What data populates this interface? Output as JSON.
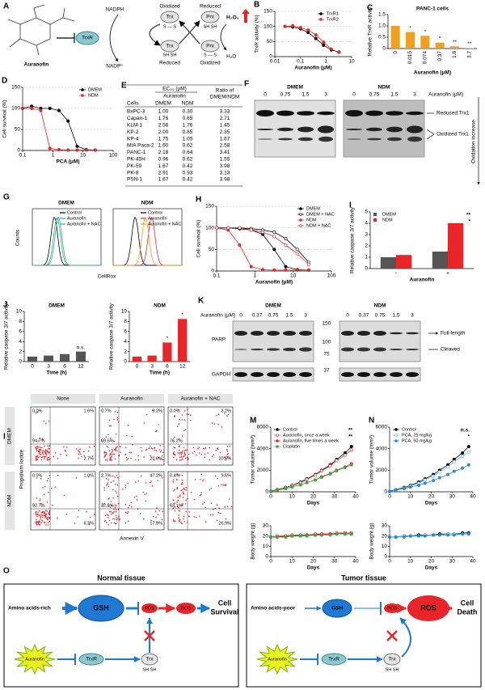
{
  "diagram_a": {
    "panel": "A",
    "compound": "Auranofin",
    "enzyme": "TrxR",
    "nadph": "NADPH",
    "nadp": "NADP⁺",
    "trx": "Trx",
    "prx": "Prx",
    "oxidized": "Oxidized",
    "reduced": "Reduced",
    "disulfide": "S — S",
    "thiol": "SH  SH",
    "h2o2": "H₂O₂",
    "h2o": "H₂O"
  },
  "table": {
    "panel": "E",
    "header_group": "EC₅₀ (μM)",
    "header_sub": "Auranofin",
    "ratio_header": [
      "Ratio of",
      "DMEM/NDM"
    ],
    "columns": [
      "Cells",
      "DMEM",
      "NDM"
    ],
    "rows": [
      [
        "BxPC-3",
        "1.00",
        "0.30",
        "3.33"
      ],
      [
        "Capan-1",
        "1.76",
        "0.65",
        "2.71"
      ],
      [
        "KLM-1",
        "2.56",
        "1.76",
        "1.45"
      ],
      [
        "KP-2",
        "2.00",
        "0.85",
        "2.35"
      ],
      [
        "KP-4",
        "1.75",
        "1.05",
        "1.67"
      ],
      [
        "MIA Paca-2",
        "1.60",
        "0.62",
        "2.58"
      ],
      [
        "PANC-1",
        "2.18",
        "0.64",
        "3.41"
      ],
      [
        "PK-45H",
        "0.96",
        "0.62",
        "1.55"
      ],
      [
        "PK-59",
        "1.67",
        "0.42",
        "3.98"
      ],
      [
        "PK-8",
        "2.91",
        "0.93",
        "3.13"
      ],
      [
        "PSN-1",
        "1.67",
        "0.42",
        "3.98"
      ]
    ]
  },
  "blot_f": {
    "panel": "F",
    "conditions": [
      "DMEM",
      "NDM"
    ],
    "lanes": [
      "0",
      "0.75",
      "1.5",
      "3"
    ],
    "treatment": "Auranofin (μM)",
    "reduced": "Reduced Trx1",
    "oxidized": "Oxidized Trx1",
    "trend": "Oxidation increase"
  },
  "flow_g": {
    "panel": "G",
    "conditions": [
      "DMEM",
      "NDM"
    ],
    "legends": [
      [
        "Control",
        "Auranofin",
        "Auranofin + NAC"
      ],
      [
        "Control",
        "Auranofin",
        "Auranofin + NAC"
      ]
    ],
    "colors": [
      [
        "#000000",
        "#29a8d8",
        "#3cb44b"
      ],
      [
        "#000000",
        "#e8262a",
        "#f0a020"
      ]
    ],
    "ylabel": "Counts",
    "xlabel": "CellRox"
  },
  "blot_k": {
    "panel": "K",
    "conditions": [
      "DMEM",
      "NDM"
    ],
    "treatment": "Auranofin (μM)",
    "lanes": [
      "0",
      "0.37",
      "0.75",
      "1.5",
      "3"
    ],
    "proteins": [
      "PARP",
      "GAPDH"
    ],
    "markers": [
      "150",
      "100",
      "75",
      "37"
    ],
    "bands": [
      "Full-length",
      "Cleaved"
    ]
  },
  "flow_l": {
    "panel": "L",
    "columns": [
      "None",
      "Auranofin",
      "Auranofin + NAC"
    ],
    "rows": [
      "DMEM",
      "NDM"
    ],
    "quadrants": [
      [
        [
          "0.0%",
          "1.6%",
          "94.7%",
          "2.7%"
        ],
        [
          "0.7%",
          "9.2%",
          "69.6%",
          "20.6%"
        ],
        [
          "0.0%",
          "3.2%",
          "76.2%",
          "20.5%"
        ]
      ],
      [
        [
          "0.0%",
          "1.0%",
          "92.7%",
          "6.3%"
        ],
        [
          "2.7%",
          "47.2%",
          "32.8%",
          "17.3%"
        ],
        [
          "0.4%",
          "9.6%",
          "63.1%",
          "26.9%"
        ]
      ]
    ],
    "ylabel": "Propidium Iodide",
    "xlabel": "Annexin V"
  },
  "diagram_o": {
    "panel": "O",
    "normal": {
      "title": "Normal tissue",
      "amino": "Amino acids-rich",
      "gsh": "GSH",
      "ros": "ROS",
      "outcome": [
        "Cell",
        "Survival"
      ],
      "drug": "Auranofin",
      "trxr": "TrxR",
      "trx": "Trx",
      "thiol": "SH SH"
    },
    "tumor": {
      "title": "Tumor tissue",
      "amino": "Amino acids-poor",
      "gsh": "GSH",
      "ros": "ROS",
      "outcome": [
        "Cell",
        "Death"
      ],
      "drug": "Auranofin",
      "trxr": "TrxR",
      "trx": "Trx",
      "thiol": "SH SH"
    }
  },
  "chart_data": [
    {
      "panel": "B",
      "type": "line",
      "xlog": true,
      "x": [
        0.025,
        0.05,
        0.1,
        0.2,
        0.4,
        0.8,
        1.6,
        3.2
      ],
      "xlim": [
        0.01,
        10
      ],
      "xticks": [
        0.01,
        0.1,
        1,
        10
      ],
      "ylim": [
        0,
        150
      ],
      "yticks": [
        0,
        50,
        100,
        150
      ],
      "grid": true,
      "xlabel": "Auranofin (μM)",
      "ylabel": "TrxR activity (%)",
      "legend": "upper right",
      "series": [
        {
          "name": "TrxR1",
          "color": "#000000",
          "marker": "filled",
          "values": [
            100,
            98,
            92,
            80,
            60,
            38,
            22,
            15
          ]
        },
        {
          "name": "TrxR2",
          "color": "#e8262a",
          "marker": "filled",
          "values": [
            100,
            102,
            96,
            88,
            72,
            48,
            25,
            14
          ]
        }
      ]
    },
    {
      "panel": "C",
      "type": "bar",
      "title": "PANC-1 cells",
      "categories": [
        "0",
        "0.015",
        "0.074",
        "0.37",
        "1.8",
        "3.7"
      ],
      "values": [
        1.0,
        0.73,
        0.56,
        0.26,
        0.1,
        0.02
      ],
      "color": "#f0a020",
      "ylim": [
        0,
        1.5
      ],
      "yticks": [
        0,
        0.5,
        {
          "value": 1,
          "label": "1.0"
        },
        1.5
      ],
      "xlabel": "Auranofin (μM)",
      "ylabel": "Relative TrxR activity",
      "significance": [
        null,
        "*",
        "*",
        "*",
        "**",
        "**"
      ]
    },
    {
      "panel": "D",
      "type": "line",
      "xlog": true,
      "x": [
        0.1,
        0.2,
        0.4,
        0.8,
        1.6,
        3.2,
        6.4,
        12.8,
        25.6
      ],
      "xlim": [
        0.1,
        100
      ],
      "xticks": [
        0.1,
        1,
        10,
        100
      ],
      "ylim": [
        0,
        150
      ],
      "yticks": [
        0,
        50,
        100,
        150
      ],
      "grid": true,
      "xlabel": "PCA (μM)",
      "ylabel": "Cell survival (%)",
      "legend": "upper right",
      "series": [
        {
          "name": "DMEM",
          "color": "#000000",
          "marker": "filled",
          "values": [
            100,
            105,
            100,
            100,
            95,
            70,
            10,
            2,
            1
          ]
        },
        {
          "name": "NDM",
          "color": "#e8262a",
          "marker": "filled",
          "values": [
            100,
            100,
            95,
            5,
            2,
            1,
            1,
            1,
            1
          ]
        }
      ]
    },
    {
      "panel": "H",
      "type": "line",
      "xlog": true,
      "x": [
        0.1,
        0.2,
        0.4,
        0.8,
        1.6,
        3.2,
        6.4,
        12.8,
        25.6
      ],
      "xlim": [
        0.1,
        100
      ],
      "xticks": [
        0.1,
        1,
        10,
        100
      ],
      "ylim": [
        0,
        150
      ],
      "yticks": [
        0,
        50,
        100,
        150
      ],
      "grid": true,
      "xlabel": "Auranofin (μM)",
      "ylabel": "Cell survival (%)",
      "legend": "upper right",
      "series": [
        {
          "name": "DMEM",
          "color": "#000000",
          "marker": "filled",
          "values": [
            100,
            100,
            98,
            95,
            85,
            50,
            10,
            3,
            2
          ]
        },
        {
          "name": "DMEM + NAC",
          "color": "#000000",
          "marker": "open",
          "values": [
            100,
            100,
            100,
            98,
            95,
            90,
            75,
            50,
            20
          ]
        },
        {
          "name": "NDM",
          "color": "#e8262a",
          "marker": "filled",
          "values": [
            100,
            95,
            60,
            10,
            3,
            2,
            2,
            2,
            2
          ]
        },
        {
          "name": "NDM + NAC",
          "color": "#e8262a",
          "marker": "open",
          "values": [
            100,
            100,
            100,
            95,
            90,
            80,
            60,
            40,
            15
          ]
        }
      ]
    },
    {
      "panel": "I",
      "type": "bar",
      "categories": [
        "-",
        "+"
      ],
      "ylim": [
        0,
        5
      ],
      "yticks": [
        0,
        1,
        2,
        3,
        4,
        5
      ],
      "xlabel": "Auranofin",
      "ylabel": "Relative caspase 3/7 activity",
      "legend": "upper left",
      "annotations": [
        "**",
        "*"
      ],
      "series": [
        {
          "name": "DMEM",
          "color": "#555555",
          "values": [
            1.0,
            1.5
          ]
        },
        {
          "name": "NDM",
          "color": "#e8262a",
          "values": [
            1.2,
            4.0
          ]
        }
      ]
    },
    {
      "panel": "J",
      "type": "bar",
      "title": "DMEM",
      "categories": [
        "0",
        "3",
        "6",
        "12"
      ],
      "values": [
        1.0,
        1.2,
        1.5,
        2.0
      ],
      "color": "#555555",
      "ylim": [
        0,
        10
      ],
      "yticks": [
        0,
        2,
        4,
        6,
        8,
        10
      ],
      "xlabel": "Time (h)",
      "ylabel": "Relative caspase 3/7 activity",
      "significance": [
        null,
        null,
        null,
        "n.s."
      ]
    },
    {
      "type": "bar",
      "title": "NDM",
      "categories": [
        "0",
        "3",
        "6",
        "12"
      ],
      "values": [
        1.0,
        1.2,
        3.8,
        8.5
      ],
      "color": "#e8262a",
      "ylim": [
        0,
        10
      ],
      "yticks": [
        0,
        2,
        4,
        6,
        8,
        10
      ],
      "xlabel": "Time (h)",
      "ylabel": "Relative caspase 3/7 activity",
      "significance": [
        null,
        null,
        "*",
        "*"
      ]
    },
    {
      "panel": "M",
      "type": "line",
      "x": [
        0,
        3,
        7,
        10,
        14,
        17,
        21,
        24,
        28,
        31,
        35,
        38
      ],
      "xlim": [
        0,
        40
      ],
      "xticks": [
        0,
        10,
        20,
        30,
        40
      ],
      "ylim": [
        0,
        6000
      ],
      "yticks": [
        0,
        2000,
        4000,
        6000
      ],
      "xlabel": "Days",
      "ylabel": "Tumor volume (mm³)",
      "legend": "upper left",
      "annotations": [
        "**",
        "**"
      ],
      "series": [
        {
          "name": "Control",
          "color": "#000000",
          "marker": "filled",
          "values": [
            50,
            200,
            400,
            600,
            900,
            1200,
            1600,
            2000,
            2500,
            3000,
            3600,
            4200
          ]
        },
        {
          "name": "Auranofin, once a week",
          "color": "#e8262a",
          "marker": "open",
          "values": [
            50,
            200,
            380,
            580,
            850,
            1150,
            1550,
            1950,
            2400,
            2900,
            3400,
            3900
          ]
        },
        {
          "name": "Auranofin, five times a week",
          "color": "#e8262a",
          "marker": "filled",
          "values": [
            50,
            150,
            300,
            450,
            650,
            850,
            1100,
            1400,
            1700,
            2000,
            2300,
            2600
          ]
        },
        {
          "name": "Cisplatin",
          "color": "#3aa845",
          "marker": "filled",
          "values": [
            50,
            150,
            300,
            450,
            650,
            850,
            1100,
            1350,
            1650,
            1950,
            2250,
            2500
          ]
        }
      ]
    },
    {
      "type": "line",
      "x": [
        0,
        3,
        7,
        10,
        14,
        17,
        21,
        24,
        28,
        31,
        35,
        38
      ],
      "xlim": [
        0,
        40
      ],
      "xticks": [
        0,
        10,
        20,
        30,
        40
      ],
      "ylim": [
        0,
        30
      ],
      "yticks": [
        0,
        10,
        20,
        30
      ],
      "xlabel": "Days",
      "ylabel": "Body weight (g)",
      "series": [
        {
          "color": "#000000",
          "marker": "filled",
          "values": [
            19,
            19,
            20,
            20,
            21,
            21,
            21,
            22,
            22,
            22,
            23,
            23
          ]
        },
        {
          "color": "#e8262a",
          "marker": "open",
          "values": [
            19,
            20,
            20,
            21,
            21,
            21,
            22,
            22,
            22,
            23,
            23,
            23
          ]
        },
        {
          "color": "#e8262a",
          "marker": "filled",
          "values": [
            19,
            19,
            19,
            20,
            20,
            21,
            21,
            21,
            22,
            22,
            22,
            22
          ]
        },
        {
          "color": "#3aa845",
          "marker": "filled",
          "values": [
            19,
            19,
            19,
            20,
            20,
            20,
            21,
            21,
            21,
            22,
            22,
            22
          ]
        }
      ]
    },
    {
      "panel": "N",
      "type": "line",
      "x": [
        0,
        3,
        7,
        10,
        14,
        17,
        21,
        24,
        28,
        31,
        35,
        38
      ],
      "xlim": [
        0,
        40
      ],
      "xticks": [
        0,
        10,
        20,
        30,
        40
      ],
      "ylim": [
        0,
        6000
      ],
      "yticks": [
        0,
        2000,
        4000,
        6000
      ],
      "xlabel": "Days",
      "ylabel": "Tumor volume (mm³)",
      "legend": "upper left",
      "annotations": [
        "n.s.",
        "*"
      ],
      "series": [
        {
          "name": "Control",
          "color": "#000000",
          "marker": "filled",
          "values": [
            50,
            200,
            400,
            600,
            900,
            1200,
            1600,
            2000,
            2500,
            3000,
            3600,
            4200
          ]
        },
        {
          "name": "PCA, 25 mg/kg",
          "color": "#5aaee0",
          "marker": "open",
          "values": [
            50,
            180,
            350,
            550,
            800,
            1100,
            1450,
            1850,
            2300,
            2800,
            3300,
            3700
          ]
        },
        {
          "name": "PCA, 50 mg/kg",
          "color": "#2a8ad0",
          "marker": "filled",
          "values": [
            50,
            150,
            300,
            450,
            600,
            800,
            1050,
            1300,
            1600,
            1900,
            2200,
            2500
          ]
        }
      ]
    },
    {
      "type": "line",
      "x": [
        0,
        3,
        7,
        10,
        14,
        17,
        21,
        24,
        28,
        31,
        35,
        38
      ],
      "xlim": [
        0,
        40
      ],
      "xticks": [
        0,
        10,
        20,
        30,
        40
      ],
      "ylim": [
        0,
        30
      ],
      "yticks": [
        0,
        10,
        20,
        30
      ],
      "xlabel": "Days",
      "ylabel": "Body weight (g)",
      "series": [
        {
          "color": "#000000",
          "marker": "filled",
          "values": [
            19,
            19,
            20,
            20,
            21,
            21,
            21,
            22,
            22,
            22,
            23,
            23
          ]
        },
        {
          "color": "#5aaee0",
          "marker": "open",
          "values": [
            19,
            19,
            20,
            20,
            20,
            21,
            21,
            21,
            22,
            22,
            22,
            22
          ]
        },
        {
          "color": "#2a8ad0",
          "marker": "filled",
          "values": [
            19,
            19,
            19,
            20,
            20,
            20,
            21,
            21,
            21,
            21,
            22,
            22
          ]
        }
      ]
    }
  ]
}
